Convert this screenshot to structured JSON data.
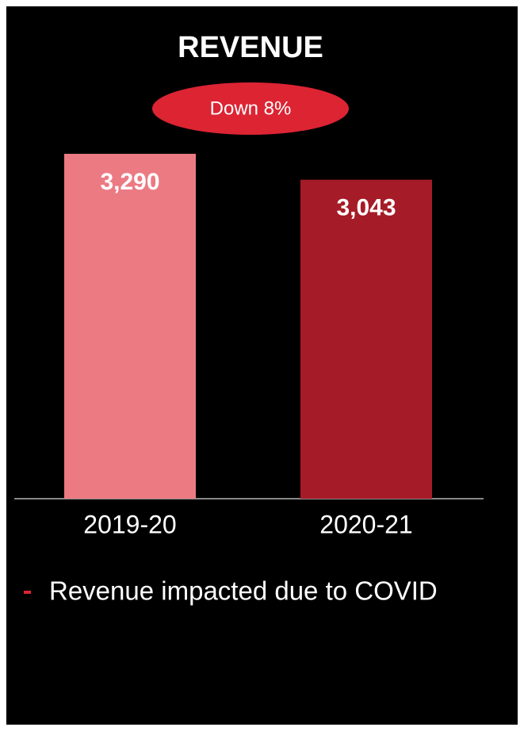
{
  "chart_data": {
    "type": "bar",
    "title": "REVENUE",
    "annotation": "Down 8%",
    "categories": [
      "2019-20",
      "2020-21"
    ],
    "values": [
      3290,
      3043
    ],
    "value_labels": [
      "3,290",
      "3,043"
    ],
    "colors": [
      "#ec7a83",
      "#a51b27"
    ],
    "note": "Revenue impacted due to COVID"
  }
}
